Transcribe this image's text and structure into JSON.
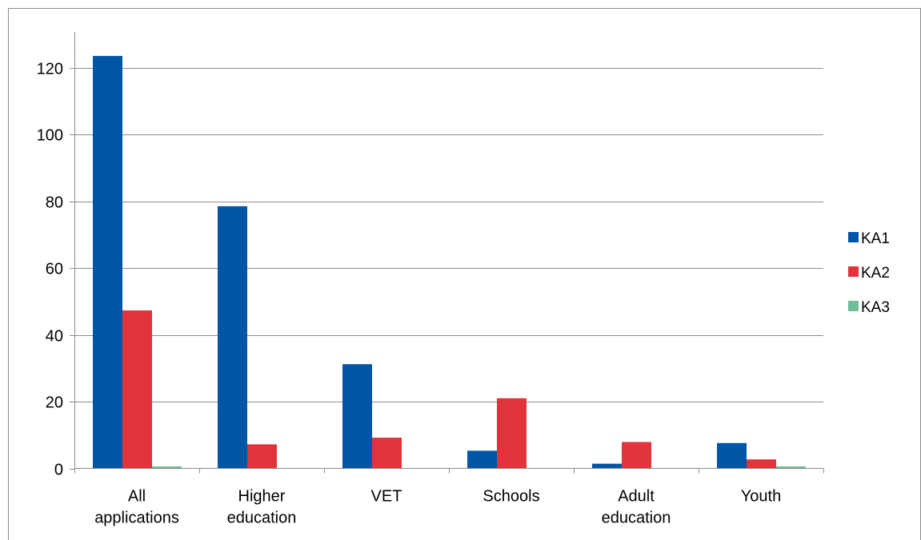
{
  "chart_data": {
    "type": "bar",
    "categories": [
      [
        "All",
        "applications"
      ],
      [
        "Higher",
        "education"
      ],
      [
        "VET"
      ],
      [
        "Schools"
      ],
      [
        "Adult",
        "education"
      ],
      [
        "Youth"
      ]
    ],
    "series": [
      {
        "name": "KA1",
        "color": "#0056a6",
        "values": [
          123.5,
          78.5,
          31.2,
          5.3,
          1.4,
          7.6
        ]
      },
      {
        "name": "KA2",
        "color": "#e0333c",
        "values": [
          47.3,
          7.2,
          9.2,
          21.0,
          7.9,
          2.7
        ]
      },
      {
        "name": "KA3",
        "color": "#6fbe98",
        "values": [
          0.6,
          0,
          0,
          0,
          0,
          0.6
        ]
      }
    ],
    "ylim": [
      0,
      120
    ],
    "yticks": [
      0,
      20,
      40,
      60,
      80,
      100,
      120
    ],
    "grid": true,
    "legend": "right"
  }
}
